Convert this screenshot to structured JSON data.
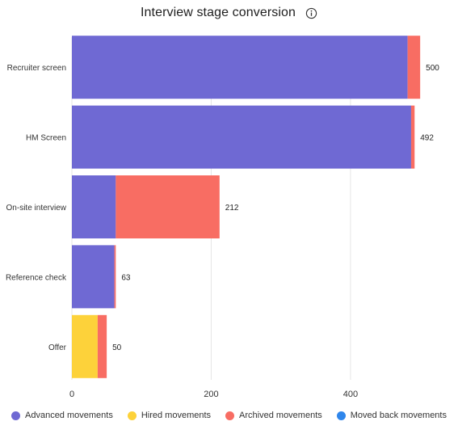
{
  "chart_data": {
    "type": "bar",
    "orientation": "horizontal",
    "stacked": true,
    "title": "Interview stage conversion",
    "categories": [
      "Recruiter screen",
      "HM Screen",
      "On-site interview",
      "Reference check",
      "Offer"
    ],
    "series": [
      {
        "name": "Advanced movements",
        "color": "#6f69d3",
        "values": [
          482,
          487,
          63,
          61,
          0
        ]
      },
      {
        "name": "Hired movements",
        "color": "#fdd23a",
        "values": [
          0,
          0,
          0,
          0,
          37
        ]
      },
      {
        "name": "Archived movements",
        "color": "#f86d63",
        "values": [
          18,
          5,
          149,
          2,
          13
        ]
      },
      {
        "name": "Moved back movements",
        "color": "#2f86eb",
        "values": [
          0,
          0,
          0,
          0,
          0
        ]
      }
    ],
    "totals": [
      "500",
      "492",
      "212",
      "63",
      "50"
    ],
    "xticks": [
      0,
      200,
      400
    ],
    "xlim": [
      0,
      552
    ],
    "grid": true,
    "legend_position": "bottom",
    "info_icon": "info-icon"
  }
}
